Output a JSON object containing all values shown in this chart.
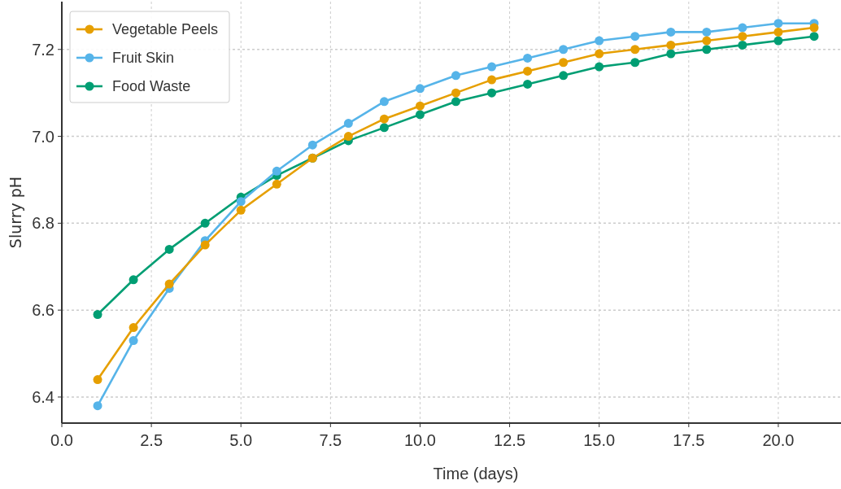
{
  "chart_data": {
    "type": "line",
    "xlabel": "Time (days)",
    "ylabel": "Slurry pH",
    "x": [
      1,
      2,
      3,
      4,
      5,
      6,
      7,
      8,
      9,
      10,
      11,
      12,
      13,
      14,
      15,
      16,
      17,
      18,
      19,
      20,
      21
    ],
    "series": [
      {
        "name": "Vegetable Peels",
        "color": "#e69f00",
        "values": [
          6.44,
          6.56,
          6.66,
          6.75,
          6.83,
          6.89,
          6.95,
          7.0,
          7.04,
          7.07,
          7.1,
          7.13,
          7.15,
          7.17,
          7.19,
          7.2,
          7.21,
          7.22,
          7.23,
          7.24,
          7.25
        ]
      },
      {
        "name": "Fruit Skin",
        "color": "#56b4e9",
        "values": [
          6.38,
          6.53,
          6.65,
          6.76,
          6.85,
          6.92,
          6.98,
          7.03,
          7.08,
          7.11,
          7.14,
          7.16,
          7.18,
          7.2,
          7.22,
          7.23,
          7.24,
          7.24,
          7.25,
          7.26,
          7.26
        ]
      },
      {
        "name": "Food Waste",
        "color": "#009e73",
        "values": [
          6.59,
          6.67,
          6.74,
          6.8,
          6.86,
          6.91,
          6.95,
          6.99,
          7.02,
          7.05,
          7.08,
          7.1,
          7.12,
          7.14,
          7.16,
          7.17,
          7.19,
          7.2,
          7.21,
          7.22,
          7.23
        ]
      }
    ],
    "xlim": [
      0,
      21.75
    ],
    "xticks": [
      {
        "value": 0,
        "label": "0.0"
      },
      {
        "value": 2.5,
        "label": "2.5"
      },
      {
        "value": 5,
        "label": "5.0"
      },
      {
        "value": 7.5,
        "label": "7.5"
      },
      {
        "value": 10,
        "label": "10.0"
      },
      {
        "value": 12.5,
        "label": "12.5"
      },
      {
        "value": 15,
        "label": "15.0"
      },
      {
        "value": 17.5,
        "label": "17.5"
      },
      {
        "value": 20,
        "label": "20.0"
      }
    ],
    "ylim": [
      6.34,
      7.31
    ],
    "yticks": [
      6.4,
      6.6,
      6.8,
      {
        "value": 7,
        "label": "7.0"
      },
      7.2
    ],
    "grid": true,
    "legend": "top left",
    "marker": "circle",
    "line_style": "solid"
  }
}
